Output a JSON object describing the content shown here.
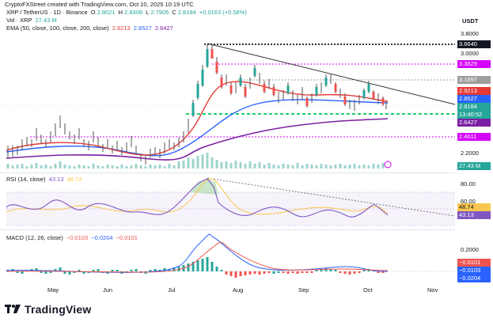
{
  "header": {
    "title": "CryptoFXStreet created with TradingView.com, Oct 10, 2025 10:19 UTC"
  },
  "symbol": {
    "pair": "XRP / TetherUS · 1D · Binance",
    "o_label": "O",
    "o": "2.8021",
    "h_label": "H",
    "h": "2.8308",
    "l_label": "L",
    "l": "2.7905",
    "c_label": "C",
    "c": "2.8184",
    "change": "+0.0163 (+0.58%)"
  },
  "volume": {
    "label": "Vol · XRP",
    "value": "27.43 M"
  },
  "ema": {
    "label": "EMA (50, close, 100, close, 200, close)",
    "v50": "2.9213",
    "v100": "2.8527",
    "v200": "2.6427",
    "c50": "#e53935",
    "c100": "#2962ff",
    "c200": "#7b1fa2"
  },
  "rsi": {
    "label": "RSI (14, close)",
    "v1": "43.13",
    "v2": "48.74"
  },
  "macd": {
    "label": "MACD (12, 26, close)",
    "v1": "−0.0103",
    "v2": "−0.0204",
    "v3": "−0.0101"
  },
  "axis": {
    "currency": "USDT",
    "price_ticks": [
      "3.8000",
      "3.0000",
      "2.2000"
    ],
    "rsi_ticks": [
      "80.00",
      "60.00"
    ],
    "macd_ticks": [
      "0.2000"
    ],
    "x_ticks": [
      "May",
      "Jun",
      "Jul",
      "Aug",
      "Sep",
      "Oct",
      "Nov"
    ]
  },
  "price_labels": {
    "l3664": "3.6640",
    "l3382": "3.3829",
    "l3189": "3.1897",
    "ema50": "2.9213",
    "ema100": "2.8527",
    "last": "2.8184",
    "countdown": "13:40:52",
    "ema200": "2.6427",
    "l2401": "2.4011",
    "vol": "27.43 M",
    "rsi_a": "48.74",
    "rsi_b": "43.13",
    "macd_a": "−0.0101",
    "macd_b": "−0.0103",
    "macd_c": "−0.0204"
  },
  "colors": {
    "up": "#26a69a",
    "down": "#ef5350",
    "black_level": "#131722",
    "magenta_level": "#d500f9",
    "green_level": "#00c853",
    "rsi": "#7e57c2",
    "rsi_ma": "#f9c74f",
    "macd": "#2962ff",
    "signal": "#ef5350"
  },
  "brand": {
    "name": "TradingView",
    "icon": "tradingview-logo-icon"
  }
}
